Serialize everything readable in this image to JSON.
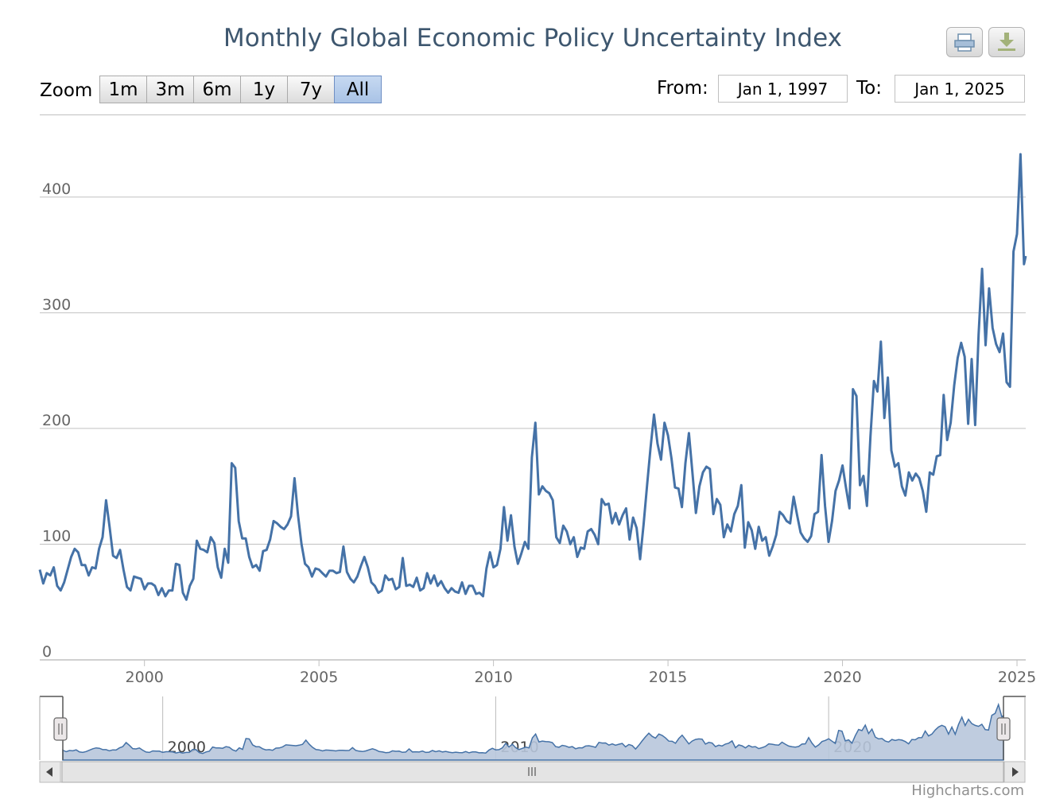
{
  "header": {
    "title": "Monthly Global Economic Policy Uncertainty Index"
  },
  "export": {
    "print_icon": "printer-icon",
    "download_icon": "download-arrow-icon"
  },
  "range_selector": {
    "zoom_label": "Zoom",
    "buttons": [
      "1m",
      "3m",
      "6m",
      "1y",
      "7y",
      "All"
    ],
    "selected": "All",
    "from_label": "From:",
    "from_value": "Jan 1, 1997",
    "to_label": "To:",
    "to_value": "Jan 1, 2025"
  },
  "credits": "Highcharts.com",
  "colors": {
    "line": "#4572a7",
    "title": "#3e576f",
    "navigator_fill": "#b8c6dc",
    "grid": "#c0c0c0"
  },
  "chart_data": {
    "type": "line",
    "title": "Monthly Global Economic Policy Uncertainty Index",
    "x_unit": "year",
    "xlim": [
      1997.0,
      2025.25
    ],
    "ylim": [
      0,
      470
    ],
    "yticks": [
      0,
      100,
      200,
      300,
      400
    ],
    "xticks": [
      2000,
      2005,
      2010,
      2015,
      2020,
      2025
    ],
    "navigator_xticks": [
      2000,
      2010,
      2020
    ],
    "grid": true,
    "legend": "none",
    "series": [
      {
        "values": [
          [
            1997.0,
            78
          ],
          [
            1997.1,
            66
          ],
          [
            1997.2,
            75
          ],
          [
            1997.3,
            73
          ],
          [
            1997.4,
            80
          ],
          [
            1997.5,
            64
          ],
          [
            1997.6,
            60
          ],
          [
            1997.7,
            67
          ],
          [
            1997.8,
            78
          ],
          [
            1997.9,
            89
          ],
          [
            1998.0,
            96
          ],
          [
            1998.1,
            93
          ],
          [
            1998.2,
            82
          ],
          [
            1998.3,
            82
          ],
          [
            1998.4,
            73
          ],
          [
            1998.5,
            80
          ],
          [
            1998.6,
            79
          ],
          [
            1998.7,
            96
          ],
          [
            1998.8,
            106
          ],
          [
            1998.9,
            138
          ],
          [
            1999.0,
            115
          ],
          [
            1999.1,
            90
          ],
          [
            1999.2,
            88
          ],
          [
            1999.3,
            95
          ],
          [
            1999.4,
            78
          ],
          [
            1999.5,
            63
          ],
          [
            1999.6,
            60
          ],
          [
            1999.7,
            72
          ],
          [
            1999.8,
            71
          ],
          [
            1999.9,
            70
          ],
          [
            2000.0,
            61
          ],
          [
            2000.1,
            66
          ],
          [
            2000.2,
            66
          ],
          [
            2000.3,
            64
          ],
          [
            2000.4,
            56
          ],
          [
            2000.5,
            62
          ],
          [
            2000.6,
            55
          ],
          [
            2000.7,
            60
          ],
          [
            2000.8,
            60
          ],
          [
            2000.9,
            83
          ],
          [
            2001.0,
            82
          ],
          [
            2001.1,
            58
          ],
          [
            2001.2,
            52
          ],
          [
            2001.3,
            64
          ],
          [
            2001.4,
            70
          ],
          [
            2001.5,
            103
          ],
          [
            2001.6,
            96
          ],
          [
            2001.7,
            95
          ],
          [
            2001.8,
            93
          ],
          [
            2001.9,
            106
          ],
          [
            2002.0,
            101
          ],
          [
            2002.1,
            80
          ],
          [
            2002.2,
            71
          ],
          [
            2002.3,
            96
          ],
          [
            2002.4,
            84
          ],
          [
            2002.5,
            170
          ],
          [
            2002.6,
            166
          ],
          [
            2002.7,
            120
          ],
          [
            2002.8,
            105
          ],
          [
            2002.9,
            105
          ],
          [
            2003.0,
            89
          ],
          [
            2003.1,
            80
          ],
          [
            2003.2,
            82
          ],
          [
            2003.3,
            77
          ],
          [
            2003.4,
            94
          ],
          [
            2003.5,
            95
          ],
          [
            2003.6,
            104
          ],
          [
            2003.7,
            120
          ],
          [
            2003.8,
            118
          ],
          [
            2003.9,
            115
          ],
          [
            2004.0,
            113
          ],
          [
            2004.1,
            117
          ],
          [
            2004.2,
            124
          ],
          [
            2004.3,
            157
          ],
          [
            2004.4,
            125
          ],
          [
            2004.5,
            100
          ],
          [
            2004.6,
            83
          ],
          [
            2004.7,
            80
          ],
          [
            2004.8,
            72
          ],
          [
            2004.9,
            79
          ],
          [
            2005.0,
            78
          ],
          [
            2005.1,
            75
          ],
          [
            2005.2,
            72
          ],
          [
            2005.3,
            77
          ],
          [
            2005.4,
            77
          ],
          [
            2005.5,
            75
          ],
          [
            2005.6,
            76
          ],
          [
            2005.7,
            98
          ],
          [
            2005.8,
            76
          ],
          [
            2005.9,
            70
          ],
          [
            2006.0,
            67
          ],
          [
            2006.1,
            72
          ],
          [
            2006.2,
            81
          ],
          [
            2006.3,
            89
          ],
          [
            2006.4,
            80
          ],
          [
            2006.5,
            67
          ],
          [
            2006.6,
            64
          ],
          [
            2006.7,
            58
          ],
          [
            2006.8,
            60
          ],
          [
            2006.9,
            73
          ],
          [
            2007.0,
            69
          ],
          [
            2007.1,
            70
          ],
          [
            2007.2,
            61
          ],
          [
            2007.3,
            63
          ],
          [
            2007.4,
            88
          ],
          [
            2007.5,
            64
          ],
          [
            2007.6,
            65
          ],
          [
            2007.7,
            63
          ],
          [
            2007.8,
            71
          ],
          [
            2007.9,
            60
          ],
          [
            2008.0,
            62
          ],
          [
            2008.1,
            75
          ],
          [
            2008.2,
            66
          ],
          [
            2008.3,
            73
          ],
          [
            2008.4,
            64
          ],
          [
            2008.5,
            68
          ],
          [
            2008.6,
            62
          ],
          [
            2008.7,
            58
          ],
          [
            2008.8,
            62
          ],
          [
            2008.9,
            59
          ],
          [
            2009.0,
            58
          ],
          [
            2009.1,
            67
          ],
          [
            2009.2,
            57
          ],
          [
            2009.3,
            64
          ],
          [
            2009.4,
            64
          ],
          [
            2009.5,
            57
          ],
          [
            2009.6,
            58
          ],
          [
            2009.7,
            55
          ],
          [
            2009.8,
            79
          ],
          [
            2009.9,
            93
          ],
          [
            2010.0,
            80
          ],
          [
            2010.1,
            82
          ],
          [
            2010.2,
            96
          ],
          [
            2010.3,
            132
          ],
          [
            2010.4,
            103
          ],
          [
            2010.5,
            125
          ],
          [
            2010.6,
            98
          ],
          [
            2010.7,
            83
          ],
          [
            2010.8,
            92
          ],
          [
            2010.9,
            102
          ],
          [
            2011.0,
            96
          ],
          [
            2011.1,
            175
          ],
          [
            2011.2,
            205
          ],
          [
            2011.3,
            143
          ],
          [
            2011.4,
            150
          ],
          [
            2011.5,
            146
          ],
          [
            2011.6,
            144
          ],
          [
            2011.7,
            138
          ],
          [
            2011.8,
            106
          ],
          [
            2011.9,
            101
          ],
          [
            2012.0,
            116
          ],
          [
            2012.1,
            111
          ],
          [
            2012.2,
            100
          ],
          [
            2012.3,
            106
          ],
          [
            2012.4,
            89
          ],
          [
            2012.5,
            97
          ],
          [
            2012.6,
            96
          ],
          [
            2012.7,
            111
          ],
          [
            2012.8,
            113
          ],
          [
            2012.9,
            108
          ],
          [
            2013.0,
            100
          ],
          [
            2013.1,
            139
          ],
          [
            2013.2,
            134
          ],
          [
            2013.3,
            135
          ],
          [
            2013.4,
            118
          ],
          [
            2013.5,
            127
          ],
          [
            2013.6,
            117
          ],
          [
            2013.7,
            125
          ],
          [
            2013.8,
            131
          ],
          [
            2013.9,
            104
          ],
          [
            2014.0,
            123
          ],
          [
            2014.1,
            114
          ],
          [
            2014.2,
            87
          ],
          [
            2014.3,
            117
          ],
          [
            2014.4,
            151
          ],
          [
            2014.5,
            183
          ],
          [
            2014.6,
            212
          ],
          [
            2014.7,
            187
          ],
          [
            2014.8,
            173
          ],
          [
            2014.9,
            205
          ],
          [
            2015.0,
            194
          ],
          [
            2015.1,
            174
          ],
          [
            2015.2,
            149
          ],
          [
            2015.3,
            148
          ],
          [
            2015.4,
            132
          ],
          [
            2015.5,
            170
          ],
          [
            2015.6,
            196
          ],
          [
            2015.7,
            162
          ],
          [
            2015.8,
            127
          ],
          [
            2015.9,
            150
          ],
          [
            2016.0,
            162
          ],
          [
            2016.1,
            167
          ],
          [
            2016.2,
            165
          ],
          [
            2016.3,
            126
          ],
          [
            2016.4,
            139
          ],
          [
            2016.5,
            134
          ],
          [
            2016.6,
            106
          ],
          [
            2016.7,
            117
          ],
          [
            2016.8,
            111
          ],
          [
            2016.9,
            126
          ],
          [
            2017.0,
            133
          ],
          [
            2017.1,
            151
          ],
          [
            2017.2,
            97
          ],
          [
            2017.3,
            119
          ],
          [
            2017.4,
            112
          ],
          [
            2017.5,
            96
          ],
          [
            2017.6,
            115
          ],
          [
            2017.7,
            103
          ],
          [
            2017.8,
            106
          ],
          [
            2017.9,
            90
          ],
          [
            2018.0,
            98
          ],
          [
            2018.1,
            108
          ],
          [
            2018.2,
            128
          ],
          [
            2018.3,
            125
          ],
          [
            2018.4,
            120
          ],
          [
            2018.5,
            118
          ],
          [
            2018.6,
            141
          ],
          [
            2018.7,
            125
          ],
          [
            2018.8,
            110
          ],
          [
            2018.9,
            105
          ],
          [
            2019.0,
            102
          ],
          [
            2019.1,
            107
          ],
          [
            2019.2,
            126
          ],
          [
            2019.3,
            128
          ],
          [
            2019.4,
            177
          ],
          [
            2019.5,
            133
          ],
          [
            2019.6,
            102
          ],
          [
            2019.7,
            120
          ],
          [
            2019.8,
            146
          ],
          [
            2019.9,
            155
          ],
          [
            2020.0,
            168
          ],
          [
            2020.1,
            149
          ],
          [
            2020.2,
            131
          ],
          [
            2020.3,
            234
          ],
          [
            2020.4,
            228
          ],
          [
            2020.5,
            151
          ],
          [
            2020.6,
            159
          ],
          [
            2020.7,
            133
          ],
          [
            2020.8,
            193
          ],
          [
            2020.9,
            241
          ],
          [
            2021.0,
            232
          ],
          [
            2021.1,
            275
          ],
          [
            2021.2,
            209
          ],
          [
            2021.3,
            244
          ],
          [
            2021.4,
            181
          ],
          [
            2021.5,
            167
          ],
          [
            2021.6,
            170
          ],
          [
            2021.7,
            150
          ],
          [
            2021.8,
            142
          ],
          [
            2021.9,
            162
          ],
          [
            2022.0,
            155
          ],
          [
            2022.1,
            161
          ],
          [
            2022.2,
            157
          ],
          [
            2022.3,
            146
          ],
          [
            2022.4,
            128
          ],
          [
            2022.5,
            162
          ],
          [
            2022.6,
            160
          ],
          [
            2022.7,
            176
          ],
          [
            2022.8,
            177
          ],
          [
            2022.9,
            229
          ],
          [
            2023.0,
            190
          ],
          [
            2023.1,
            205
          ],
          [
            2023.2,
            237
          ],
          [
            2023.3,
            261
          ],
          [
            2023.4,
            274
          ],
          [
            2023.5,
            262
          ],
          [
            2023.6,
            204
          ],
          [
            2023.7,
            260
          ],
          [
            2023.8,
            203
          ],
          [
            2023.9,
            281
          ],
          [
            2024.0,
            338
          ],
          [
            2024.1,
            272
          ],
          [
            2024.2,
            321
          ],
          [
            2024.3,
            287
          ],
          [
            2024.4,
            273
          ],
          [
            2024.5,
            266
          ],
          [
            2024.6,
            282
          ],
          [
            2024.7,
            240
          ],
          [
            2024.8,
            236
          ],
          [
            2024.9,
            353
          ],
          [
            2025.0,
            368
          ],
          [
            2025.1,
            437
          ],
          [
            2025.2,
            342
          ],
          [
            2025.25,
            349
          ]
        ]
      }
    ]
  }
}
